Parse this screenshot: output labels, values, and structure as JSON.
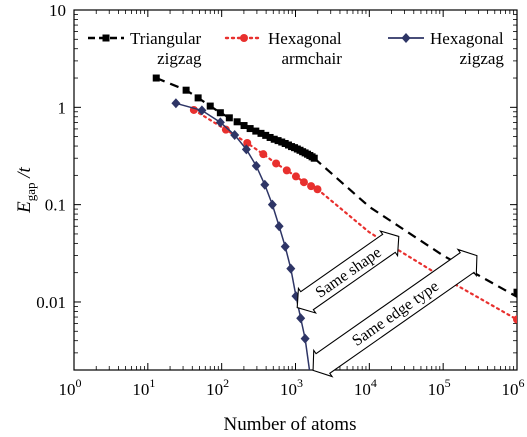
{
  "chart_data": {
    "type": "line",
    "xlabel": "Number of atoms",
    "ylabel": "E",
    "ylabel_sub": "gap",
    "ylabel_suffix": " /t",
    "xscale": "log",
    "yscale": "log",
    "xlim": [
      1,
      1000000
    ],
    "ylim": [
      0.002,
      10
    ],
    "x_ticks": [
      {
        "value": 1,
        "base": "10",
        "exp": "0"
      },
      {
        "value": 10,
        "base": "10",
        "exp": "1"
      },
      {
        "value": 100,
        "base": "10",
        "exp": "2"
      },
      {
        "value": 1000,
        "base": "10",
        "exp": "3"
      },
      {
        "value": 10000,
        "base": "10",
        "exp": "4"
      },
      {
        "value": 100000,
        "base": "10",
        "exp": "5"
      },
      {
        "value": 1000000,
        "base": "10",
        "exp": "6"
      }
    ],
    "y_ticks": [
      {
        "value": 0.01,
        "label": "0.01"
      },
      {
        "value": 0.1,
        "label": "0.1"
      },
      {
        "value": 1,
        "label": "1"
      },
      {
        "value": 10,
        "label": "10"
      }
    ],
    "legend_position": "top",
    "series": [
      {
        "name_lines": [
          "Triangular",
          "zigzag"
        ],
        "color": "#000000",
        "marker": "square",
        "line_style": "dashed",
        "x": [
          13,
          33,
          48,
          70,
          96,
          127,
          162,
          201,
          243,
          290,
          341,
          395,
          453,
          515,
          581,
          651,
          725,
          803,
          884,
          970,
          1059,
          1152,
          1249,
          1350,
          1455,
          1564,
          1677,
          1794
        ],
        "y": [
          2.0,
          1.5,
          1.25,
          1.03,
          0.88,
          0.78,
          0.71,
          0.65,
          0.605,
          0.57,
          0.54,
          0.515,
          0.49,
          0.47,
          0.455,
          0.44,
          0.425,
          0.41,
          0.395,
          0.385,
          0.373,
          0.362,
          0.35,
          0.34,
          0.33,
          0.32,
          0.31,
          0.3
        ],
        "extrapolation": {
          "x": [
            1794,
            10000,
            100000,
            1000000
          ],
          "y": [
            0.3,
            0.095,
            0.03,
            0.0113
          ]
        },
        "far_point": {
          "x": 1000000,
          "y": 0.0126
        }
      },
      {
        "name_lines": [
          "Hexagonal",
          "armchair"
        ],
        "color": "#e8302e",
        "marker": "circle",
        "line_style": "dotted",
        "x": [
          42,
          114,
          222,
          366,
          546,
          762,
          1014,
          1302,
          1626,
          1986
        ],
        "y": [
          0.94,
          0.59,
          0.43,
          0.33,
          0.265,
          0.225,
          0.195,
          0.17,
          0.155,
          0.144
        ],
        "extrapolation": {
          "x": [
            1986,
            10000,
            100000,
            1000000
          ],
          "y": [
            0.144,
            0.052,
            0.0178,
            0.0066
          ]
        },
        "far_point": {
          "x": 1000000,
          "y": 0.0066
        }
      },
      {
        "name_lines": [
          "Hexagonal",
          "zigzag"
        ],
        "color": "#2e3566",
        "marker": "diamond",
        "line_style": "solid",
        "x": [
          24,
          54,
          96,
          150,
          216,
          294,
          384,
          486,
          600,
          726,
          864,
          1014,
          1176,
          1350
        ],
        "y": [
          1.1,
          0.93,
          0.7,
          0.52,
          0.37,
          0.25,
          0.16,
          0.1,
          0.06,
          0.037,
          0.022,
          0.0115,
          0.0068,
          0.0042
        ],
        "extrapolation": {
          "x": [
            1350,
            1560
          ],
          "y": [
            0.0042,
            0.0019
          ]
        }
      }
    ],
    "annotations": [
      {
        "text": "Same shape"
      },
      {
        "text": "Same edge type"
      }
    ]
  }
}
